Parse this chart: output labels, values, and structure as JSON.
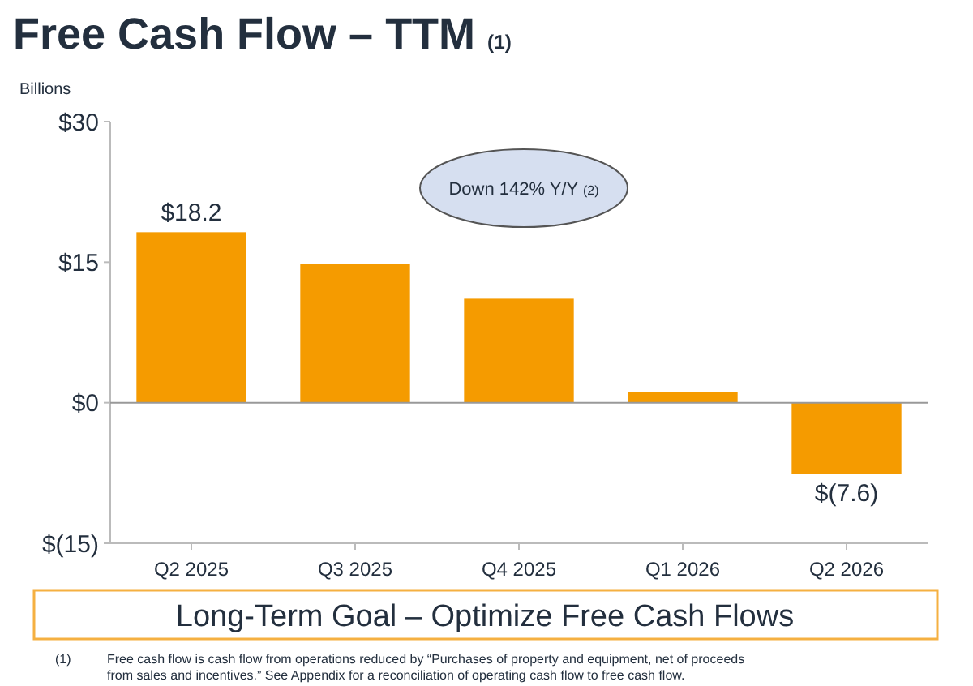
{
  "chart_data": {
    "type": "bar",
    "title": "Free Cash Flow – TTM $_{(1)}$",
    "ylabel": "Billions",
    "categories": [
      "Q2 2025",
      "Q3 2025",
      "Q4 2025",
      "Q1 2026",
      "Q2 2026"
    ],
    "values": [
      18.2,
      14.8,
      11.1,
      1.1,
      -7.6
    ],
    "color": "#f59b00",
    "value_labels": [
      "$18.2",
      null,
      null,
      null,
      "$(7.6)"
    ],
    "ylim": [
      -15,
      30
    ],
    "yticks": [
      {
        "value": -15,
        "label": "$(15)"
      },
      {
        "value": 0,
        "label": "$0"
      },
      {
        "value": 15,
        "label": "$15"
      },
      {
        "value": 30,
        "label": "$30"
      }
    ],
    "annotations": [
      "Down 142% Y/Y $_{(2)}$",
      "Long-Term Goal – Optimize Free Cash Flows",
      "(1)",
      "Free cash flow is cash flow from operations reduced by “Purchases of property and equipment, net of proceeds from sales and incentives.” See Appendix for a reconciliation of operating cash flow to free cash flow."
    ]
  }
}
